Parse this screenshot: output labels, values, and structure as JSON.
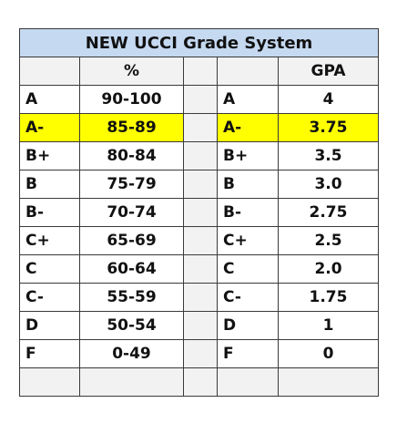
{
  "table": {
    "title": "NEW UCCI Grade System",
    "headers": {
      "grade_left": "",
      "percent": "%",
      "spacer": "",
      "grade_right": "",
      "gpa": "GPA"
    },
    "rows": [
      {
        "grade": "A",
        "percent": "90-100",
        "grade2": "A",
        "gpa": "4"
      },
      {
        "grade": "A-",
        "percent": "85-89",
        "grade2": "A-",
        "gpa": "3.75"
      },
      {
        "grade": "B+",
        "percent": "80-84",
        "grade2": "B+",
        "gpa": "3.5"
      },
      {
        "grade": "B",
        "percent": "75-79",
        "grade2": "B",
        "gpa": "3.0"
      },
      {
        "grade": "B-",
        "percent": "70-74",
        "grade2": "B-",
        "gpa": "2.75"
      },
      {
        "grade": "C+",
        "percent": "65-69",
        "grade2": "C+",
        "gpa": "2.5"
      },
      {
        "grade": "C",
        "percent": "60-64",
        "grade2": "C",
        "gpa": "2.0"
      },
      {
        "grade": "C-",
        "percent": "55-59",
        "grade2": "C-",
        "gpa": "1.75"
      },
      {
        "grade": "D",
        "percent": "50-54",
        "grade2": "D",
        "gpa": "1"
      },
      {
        "grade": "F",
        "percent": "0-49",
        "grade2": "F",
        "gpa": "0"
      }
    ],
    "highlighted_row": "A-",
    "colors": {
      "title_bg": "#c5d9f1",
      "highlight_bg": "#ffff00",
      "header_bg": "#f2f2f2",
      "border": "#3a3a3a"
    }
  }
}
